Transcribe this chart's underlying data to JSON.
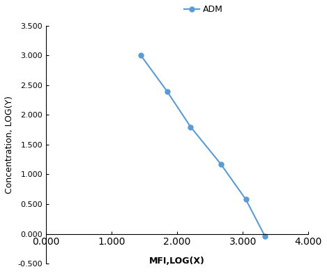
{
  "x": [
    1.447,
    1.845,
    2.204,
    2.663,
    3.045,
    3.34
  ],
  "y": [
    3.0,
    2.398,
    1.799,
    1.176,
    0.58,
    -0.046
  ],
  "line_color": "#5B9BD5",
  "marker": "o",
  "marker_size": 5,
  "linewidth": 1.5,
  "legend_label": "ADM",
  "xlabel": "MFI,LOG(X)",
  "ylabel": "Concentration, LOG(Y)",
  "xlim": [
    0.0,
    4.0
  ],
  "ylim": [
    -0.5,
    3.5
  ],
  "xticks": [
    0.0,
    1.0,
    2.0,
    3.0,
    4.0
  ],
  "yticks": [
    -0.5,
    0.0,
    0.5,
    1.0,
    1.5,
    2.0,
    2.5,
    3.0,
    3.5
  ],
  "xtick_labels": [
    "0.000",
    "1.000",
    "2.000",
    "3.000",
    "4.000"
  ],
  "ytick_labels": [
    "-0.500",
    "0.000",
    "0.500",
    "1.000",
    "1.500",
    "2.000",
    "2.500",
    "3.000",
    "3.500"
  ],
  "axis_label_fontsize": 9,
  "tick_fontsize": 8,
  "legend_fontsize": 9,
  "background_color": "#ffffff",
  "xlabel_fontweight": "bold",
  "ylabel_fontweight": "normal"
}
